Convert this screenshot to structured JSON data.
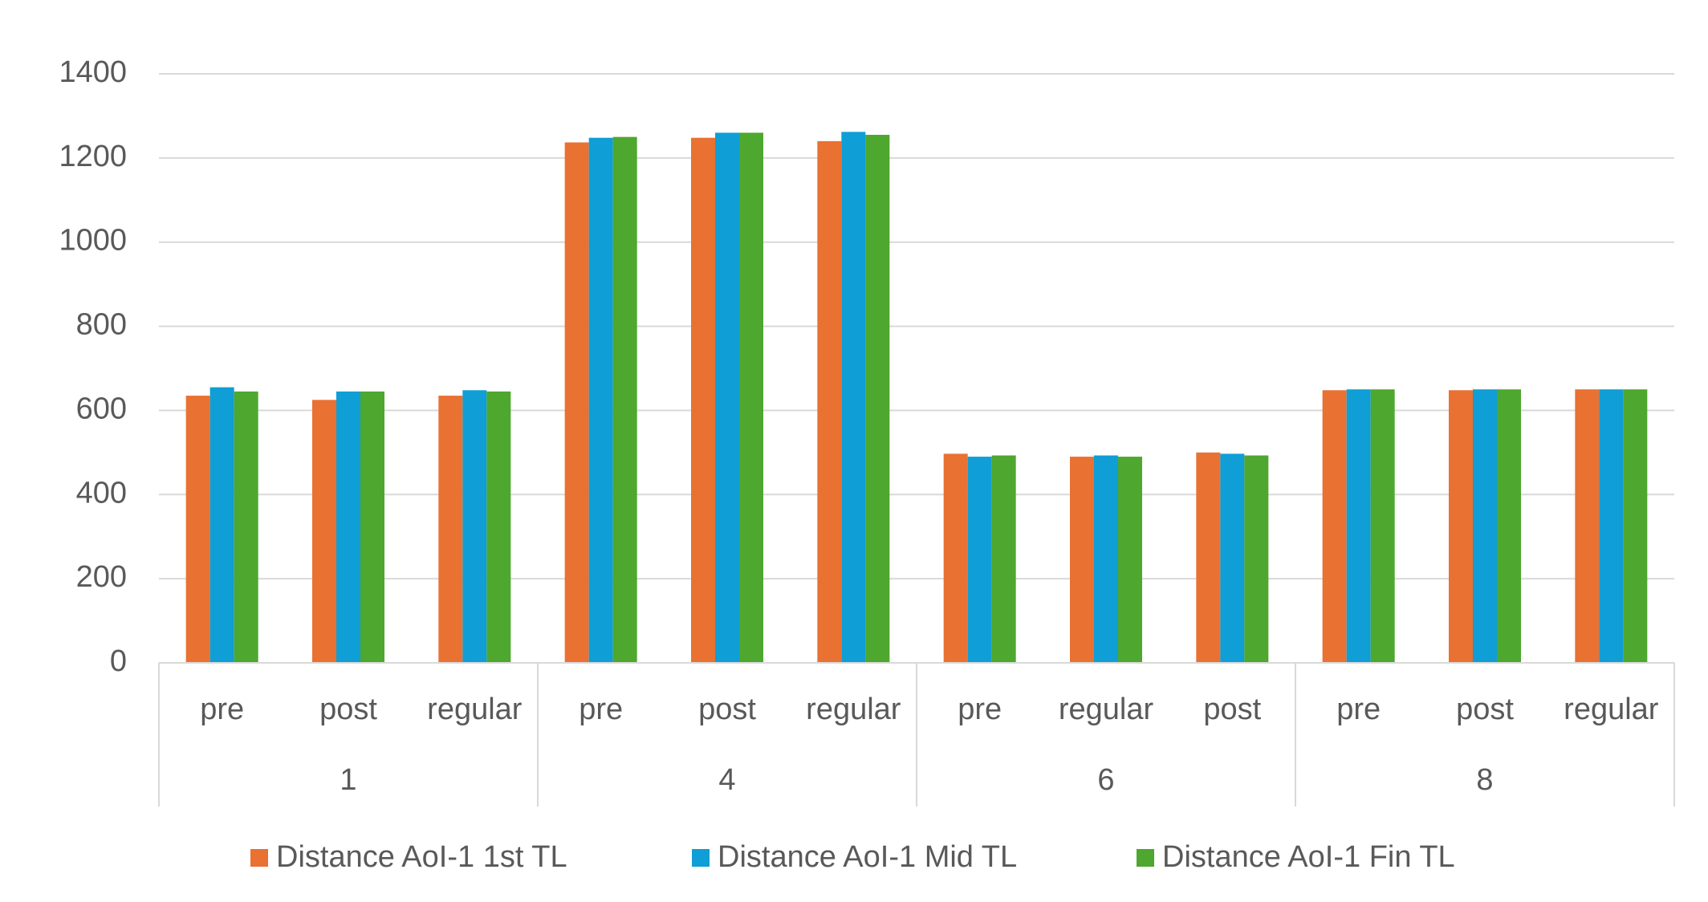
{
  "chart_data": {
    "type": "bar",
    "groups": [
      {
        "name": "1",
        "categories": [
          "pre",
          "post",
          "regular"
        ]
      },
      {
        "name": "4",
        "categories": [
          "pre",
          "post",
          "regular"
        ]
      },
      {
        "name": "6",
        "categories": [
          "pre",
          "regular",
          "post"
        ]
      },
      {
        "name": "8",
        "categories": [
          "pre",
          "post",
          "regular"
        ]
      }
    ],
    "series": [
      {
        "name": "Distance AoI-1 1st TL",
        "color": "#E97132",
        "values": [
          635,
          625,
          635,
          1237,
          1248,
          1240,
          497,
          490,
          500,
          648,
          648,
          650
        ]
      },
      {
        "name": "Distance AoI-1 Mid TL",
        "color": "#0F9ED5",
        "values": [
          655,
          645,
          648,
          1248,
          1260,
          1262,
          490,
          493,
          497,
          650,
          650,
          650
        ]
      },
      {
        "name": "Distance AoI-1 Fin TL",
        "color": "#4EA72E",
        "values": [
          645,
          645,
          645,
          1250,
          1260,
          1255,
          493,
          490,
          493,
          650,
          650,
          650
        ]
      }
    ],
    "ylim": [
      0,
      1400
    ],
    "yticks": [
      0,
      200,
      400,
      600,
      800,
      1000,
      1200,
      1400
    ],
    "grid": true,
    "legend": "bottom"
  }
}
